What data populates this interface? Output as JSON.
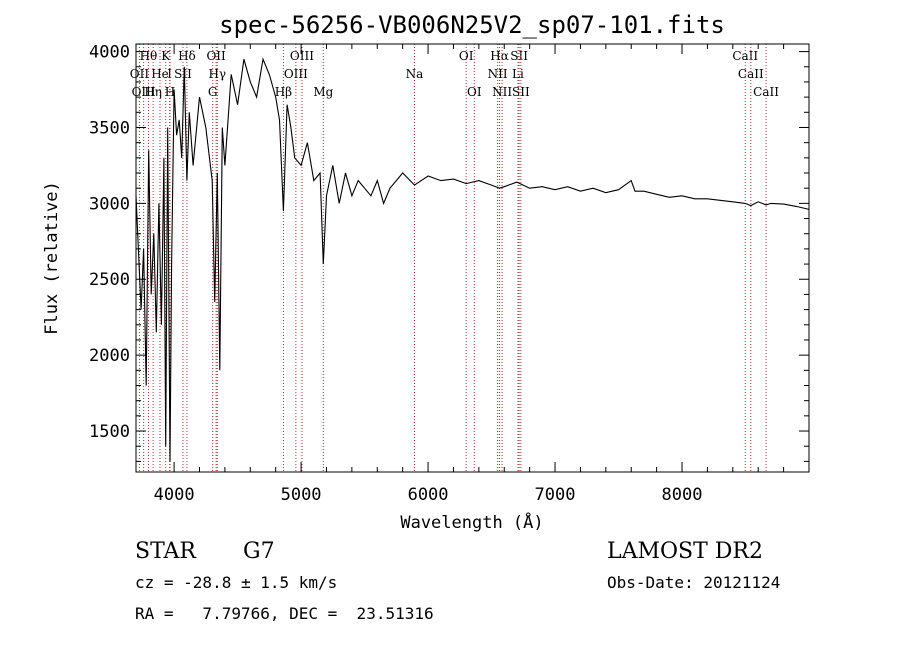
{
  "chart_data": {
    "type": "line",
    "title": "spec-56256-VB006N25V2_sp07-101.fits",
    "xlabel": "Wavelength (Å)",
    "ylabel": "Flux (relative)",
    "xlim": [
      3700,
      9000
    ],
    "ylim": [
      1230,
      4050
    ],
    "xticks": [
      4000,
      5000,
      6000,
      7000,
      8000
    ],
    "xtick_labels": [
      "4000",
      "5000",
      "6000",
      "7000",
      "8000"
    ],
    "yticks": [
      1500,
      2000,
      2500,
      3000,
      3500,
      4000
    ],
    "ytick_labels": [
      "1500",
      "2000",
      "2500",
      "3000",
      "3500",
      "4000"
    ],
    "grid": false,
    "line_color": "#000000",
    "marker_color": "#b03030",
    "series": [
      {
        "x": [
          3700,
          3740,
          3760,
          3780,
          3800,
          3820,
          3840,
          3860,
          3880,
          3900,
          3920,
          3934,
          3950,
          3968,
          3980,
          4000,
          4020,
          4040,
          4060,
          4080,
          4101,
          4120,
          4150,
          4200,
          4250,
          4300,
          4320,
          4340,
          4360,
          4380,
          4400,
          4450,
          4500,
          4550,
          4600,
          4650,
          4700,
          4750,
          4800,
          4830,
          4861,
          4890,
          4920,
          4950,
          5000,
          5050,
          5100,
          5150,
          5175,
          5200,
          5250,
          5300,
          5350,
          5400,
          5450,
          5500,
          5550,
          5600,
          5650,
          5700,
          5800,
          5893,
          6000,
          6100,
          6200,
          6300,
          6400,
          6500,
          6563,
          6600,
          6700,
          6800,
          6900,
          7000,
          7100,
          7200,
          7300,
          7400,
          7500,
          7600,
          7630,
          7700,
          7800,
          7900,
          8000,
          8100,
          8200,
          8300,
          8400,
          8498,
          8542,
          8600,
          8662,
          8700,
          8800,
          8900,
          9000
        ],
        "y": [
          3050,
          2300,
          2700,
          1800,
          3350,
          2400,
          2800,
          2150,
          3000,
          2200,
          3300,
          1400,
          3500,
          1300,
          2600,
          3750,
          3450,
          3550,
          3300,
          3900,
          3150,
          3600,
          3250,
          3700,
          3500,
          3150,
          2350,
          3200,
          1900,
          3500,
          3250,
          3850,
          3650,
          3950,
          3800,
          3700,
          3950,
          3850,
          3700,
          3550,
          2950,
          3650,
          3500,
          3300,
          3250,
          3400,
          3150,
          3200,
          2600,
          3050,
          3250,
          3000,
          3200,
          3050,
          3150,
          3100,
          3050,
          3150,
          3000,
          3100,
          3200,
          3120,
          3180,
          3150,
          3160,
          3130,
          3150,
          3120,
          3100,
          3110,
          3140,
          3100,
          3110,
          3090,
          3110,
          3080,
          3100,
          3070,
          3090,
          3150,
          3080,
          3080,
          3060,
          3040,
          3050,
          3030,
          3030,
          3020,
          3010,
          3000,
          2985,
          3010,
          2990,
          3000,
          2995,
          2980,
          2960
        ]
      }
    ],
    "line_markers": [
      {
        "label": "Hθ",
        "wave": 3798,
        "row": 0
      },
      {
        "label": "K",
        "wave": 3934,
        "row": 0
      },
      {
        "label": "Hδ",
        "wave": 4101,
        "row": 0
      },
      {
        "label": "OII",
        "wave": 4331,
        "row": 0
      },
      {
        "label": "OIII",
        "wave": 5007,
        "row": 0
      },
      {
        "label": "OI",
        "wave": 6300,
        "row": 0
      },
      {
        "label": "Hα",
        "wave": 6563,
        "row": 0
      },
      {
        "label": "SII",
        "wave": 6717,
        "row": 0
      },
      {
        "label": "CaII",
        "wave": 8498,
        "row": 0
      },
      {
        "label": "OII",
        "wave": 3727,
        "row": 1
      },
      {
        "label": "He",
        "wave": 3889,
        "row": 1
      },
      {
        "label": "I",
        "wave": 3965,
        "row": 1
      },
      {
        "label": "SII",
        "wave": 4070,
        "row": 1
      },
      {
        "label": "Hγ",
        "wave": 4340,
        "row": 1
      },
      {
        "label": "OIII",
        "wave": 4959,
        "row": 1
      },
      {
        "label": "Na",
        "wave": 5893,
        "row": 1
      },
      {
        "label": "NII",
        "wave": 6548,
        "row": 1
      },
      {
        "label": "Li",
        "wave": 6708,
        "row": 1
      },
      {
        "label": "CaII",
        "wave": 8542,
        "row": 1
      },
      {
        "label": "OIII",
        "wave": 3760,
        "row": 2
      },
      {
        "label": "Hη",
        "wave": 3835,
        "row": 2
      },
      {
        "label": "H",
        "wave": 3968,
        "row": 2
      },
      {
        "label": "G",
        "wave": 4304,
        "row": 2
      },
      {
        "label": "Hβ",
        "wave": 4861,
        "row": 2
      },
      {
        "label": "Mg",
        "wave": 5175,
        "row": 2
      },
      {
        "label": "OI",
        "wave": 6364,
        "row": 2
      },
      {
        "label": "NII",
        "wave": 6583,
        "row": 2
      },
      {
        "label": "SII",
        "wave": 6731,
        "row": 2
      },
      {
        "label": "CaII",
        "wave": 8662,
        "row": 2
      }
    ]
  },
  "info": {
    "object_class": "STAR",
    "subclass": "G7",
    "survey": "LAMOST DR2",
    "cz": "cz = -28.8 ± 1.5 km/s",
    "obs_date": "Obs-Date: 20121124",
    "radec": "RA =   7.79766, DEC =  23.51316"
  }
}
